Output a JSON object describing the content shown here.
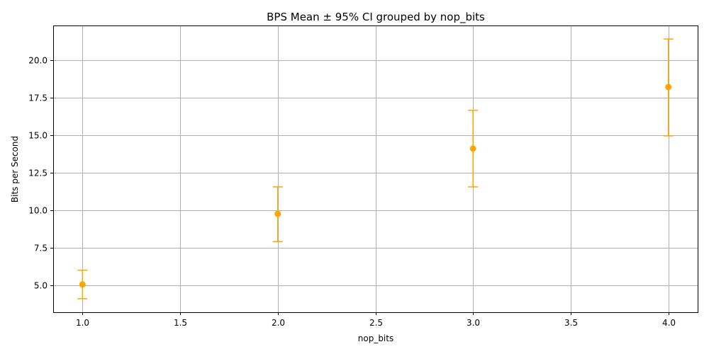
{
  "chart_data": {
    "type": "scatter",
    "title": "BPS Mean ± 95% CI grouped by nop_bits",
    "xlabel": "nop_bits",
    "ylabel": "Bits per Second",
    "xlim": [
      0.85,
      4.15
    ],
    "ylim": [
      3.2,
      22.3
    ],
    "x_ticks": [
      1.0,
      1.5,
      2.0,
      2.5,
      3.0,
      3.5,
      4.0
    ],
    "x_tick_labels": [
      "1.0",
      "1.5",
      "2.0",
      "2.5",
      "3.0",
      "3.5",
      "4.0"
    ],
    "y_ticks": [
      5.0,
      7.5,
      10.0,
      12.5,
      15.0,
      17.5,
      20.0
    ],
    "y_tick_labels": [
      "5.0",
      "7.5",
      "10.0",
      "12.5",
      "15.0",
      "17.5",
      "20.0"
    ],
    "grid": true,
    "color": "#ffa500",
    "series": [
      {
        "points": [
          {
            "x": 1.0,
            "y": 5.05,
            "lower": 4.1,
            "upper": 6.0
          },
          {
            "x": 2.0,
            "y": 9.75,
            "lower": 7.9,
            "upper": 11.55
          },
          {
            "x": 3.0,
            "y": 14.1,
            "lower": 11.55,
            "upper": 16.65
          },
          {
            "x": 4.0,
            "y": 18.2,
            "lower": 14.95,
            "upper": 21.4
          }
        ]
      }
    ]
  }
}
